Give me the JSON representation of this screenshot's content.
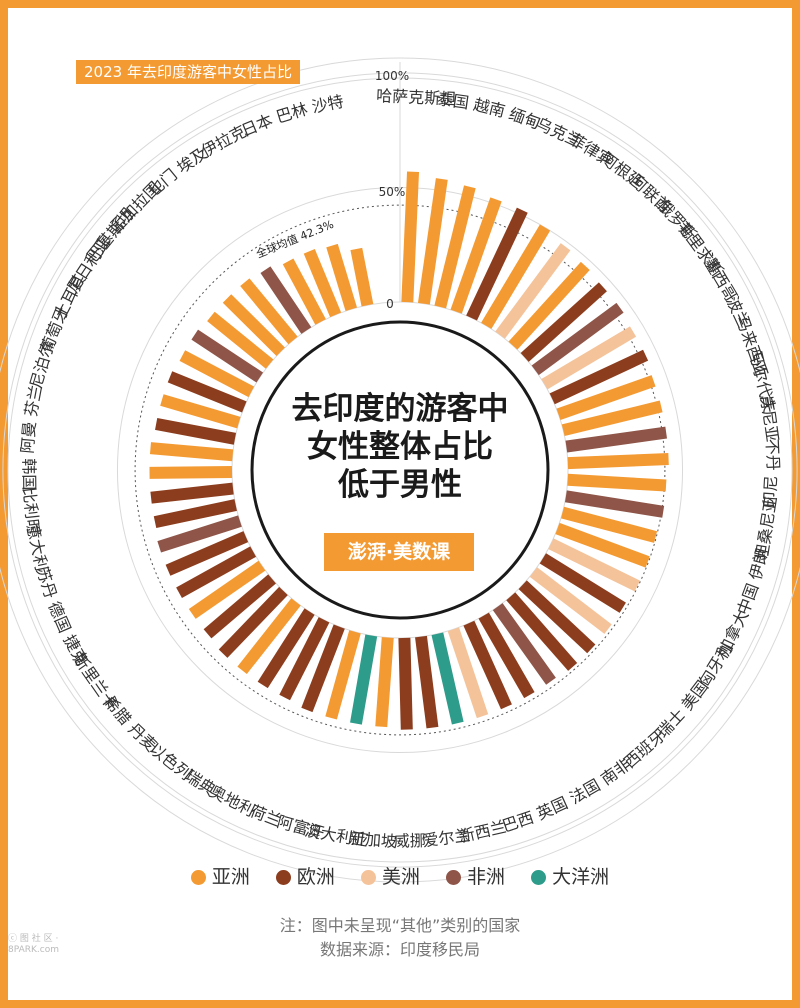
{
  "title": "2023 年去印度游客中女性占比",
  "center_text": [
    "去印度的游客中",
    "女性整体占比",
    "低于男性"
  ],
  "logo_text": "澎湃·美数课",
  "axis_labels": {
    "top": "100%",
    "mid": "50%",
    "zero": "0"
  },
  "average_label": "全球均值 42.3%",
  "legend": [
    {
      "label": "亚洲",
      "color": "#f49a32"
    },
    {
      "label": "欧洲",
      "color": "#8c3d1e"
    },
    {
      "label": "美洲",
      "color": "#f4c39a"
    },
    {
      "label": "非洲",
      "color": "#8e5548"
    },
    {
      "label": "大洋洲",
      "color": "#2e9c8a"
    }
  ],
  "note": "注：图中未呈现“其他”类别的国家",
  "source": "数据来源：印度移民局",
  "watermark": "ⓒ 图 社 区 · 8PARK.com",
  "chart_data": {
    "type": "radial-bar",
    "title": "2023 年去印度游客中女性占比",
    "unit": "%",
    "ylim": [
      0,
      100
    ],
    "reference_line": {
      "label": "全球均值 42.3%",
      "value": 42.3
    },
    "categories": [
      "哈萨克斯坦",
      "泰国",
      "越南",
      "缅甸",
      "乌克兰",
      "菲律宾",
      "阿根廷",
      "阿联酋",
      "俄罗斯",
      "毛里求斯",
      "墨西哥",
      "波兰",
      "马来西亚",
      "马尔代夫",
      "肯尼亚",
      "不丹",
      "印尼",
      "坦桑尼亚",
      "伊朗",
      "中国",
      "加拿大",
      "匈牙利",
      "美国",
      "瑞士",
      "西班牙",
      "南非",
      "法国",
      "英国",
      "巴西",
      "新西兰",
      "爱尔兰",
      "威挪",
      "新加坡",
      "澳大利亚",
      "阿富汗",
      "荷兰",
      "奥地利",
      "瑞典",
      "以色列",
      "丹麦",
      "希腊",
      "斯里兰卡",
      "捷克",
      "德国",
      "苏丹",
      "意大利",
      "比利时",
      "韩国",
      "阿曼",
      "芬兰",
      "尼泊尔",
      "葡萄牙",
      "土耳其",
      "尼日利亚",
      "巴基斯坦",
      "孟加拉国",
      "也门",
      "埃及",
      "伊拉克",
      "日本",
      "巴林",
      "沙特"
    ],
    "continents": [
      "亚洲",
      "亚洲",
      "亚洲",
      "亚洲",
      "欧洲",
      "亚洲",
      "美洲",
      "亚洲",
      "欧洲",
      "非洲",
      "美洲",
      "欧洲",
      "亚洲",
      "亚洲",
      "非洲",
      "亚洲",
      "亚洲",
      "非洲",
      "亚洲",
      "亚洲",
      "美洲",
      "欧洲",
      "美洲",
      "欧洲",
      "欧洲",
      "非洲",
      "欧洲",
      "欧洲",
      "美洲",
      "大洋洲",
      "欧洲",
      "欧洲",
      "亚洲",
      "大洋洲",
      "亚洲",
      "欧洲",
      "欧洲",
      "欧洲",
      "亚洲",
      "欧洲",
      "欧洲",
      "亚洲",
      "欧洲",
      "欧洲",
      "非洲",
      "欧洲",
      "欧洲",
      "亚洲",
      "亚洲",
      "欧洲",
      "亚洲",
      "欧洲",
      "亚洲",
      "非洲",
      "亚洲",
      "亚洲",
      "亚洲",
      "非洲",
      "亚洲",
      "亚洲",
      "亚洲",
      "亚洲"
    ],
    "values": [
      57,
      55,
      54,
      52,
      52,
      50,
      48,
      47,
      46,
      46,
      45,
      45,
      44,
      44,
      44,
      44,
      43,
      43,
      42,
      42,
      42,
      41,
      41,
      41,
      41,
      40,
      40,
      40,
      40,
      40,
      40,
      40,
      39,
      39,
      39,
      39,
      38,
      38,
      38,
      38,
      37,
      37,
      37,
      37,
      37,
      36,
      36,
      36,
      36,
      35,
      35,
      35,
      34,
      34,
      33,
      33,
      33,
      32,
      30,
      30,
      29,
      25
    ],
    "grid": true,
    "legend_position": "bottom"
  }
}
